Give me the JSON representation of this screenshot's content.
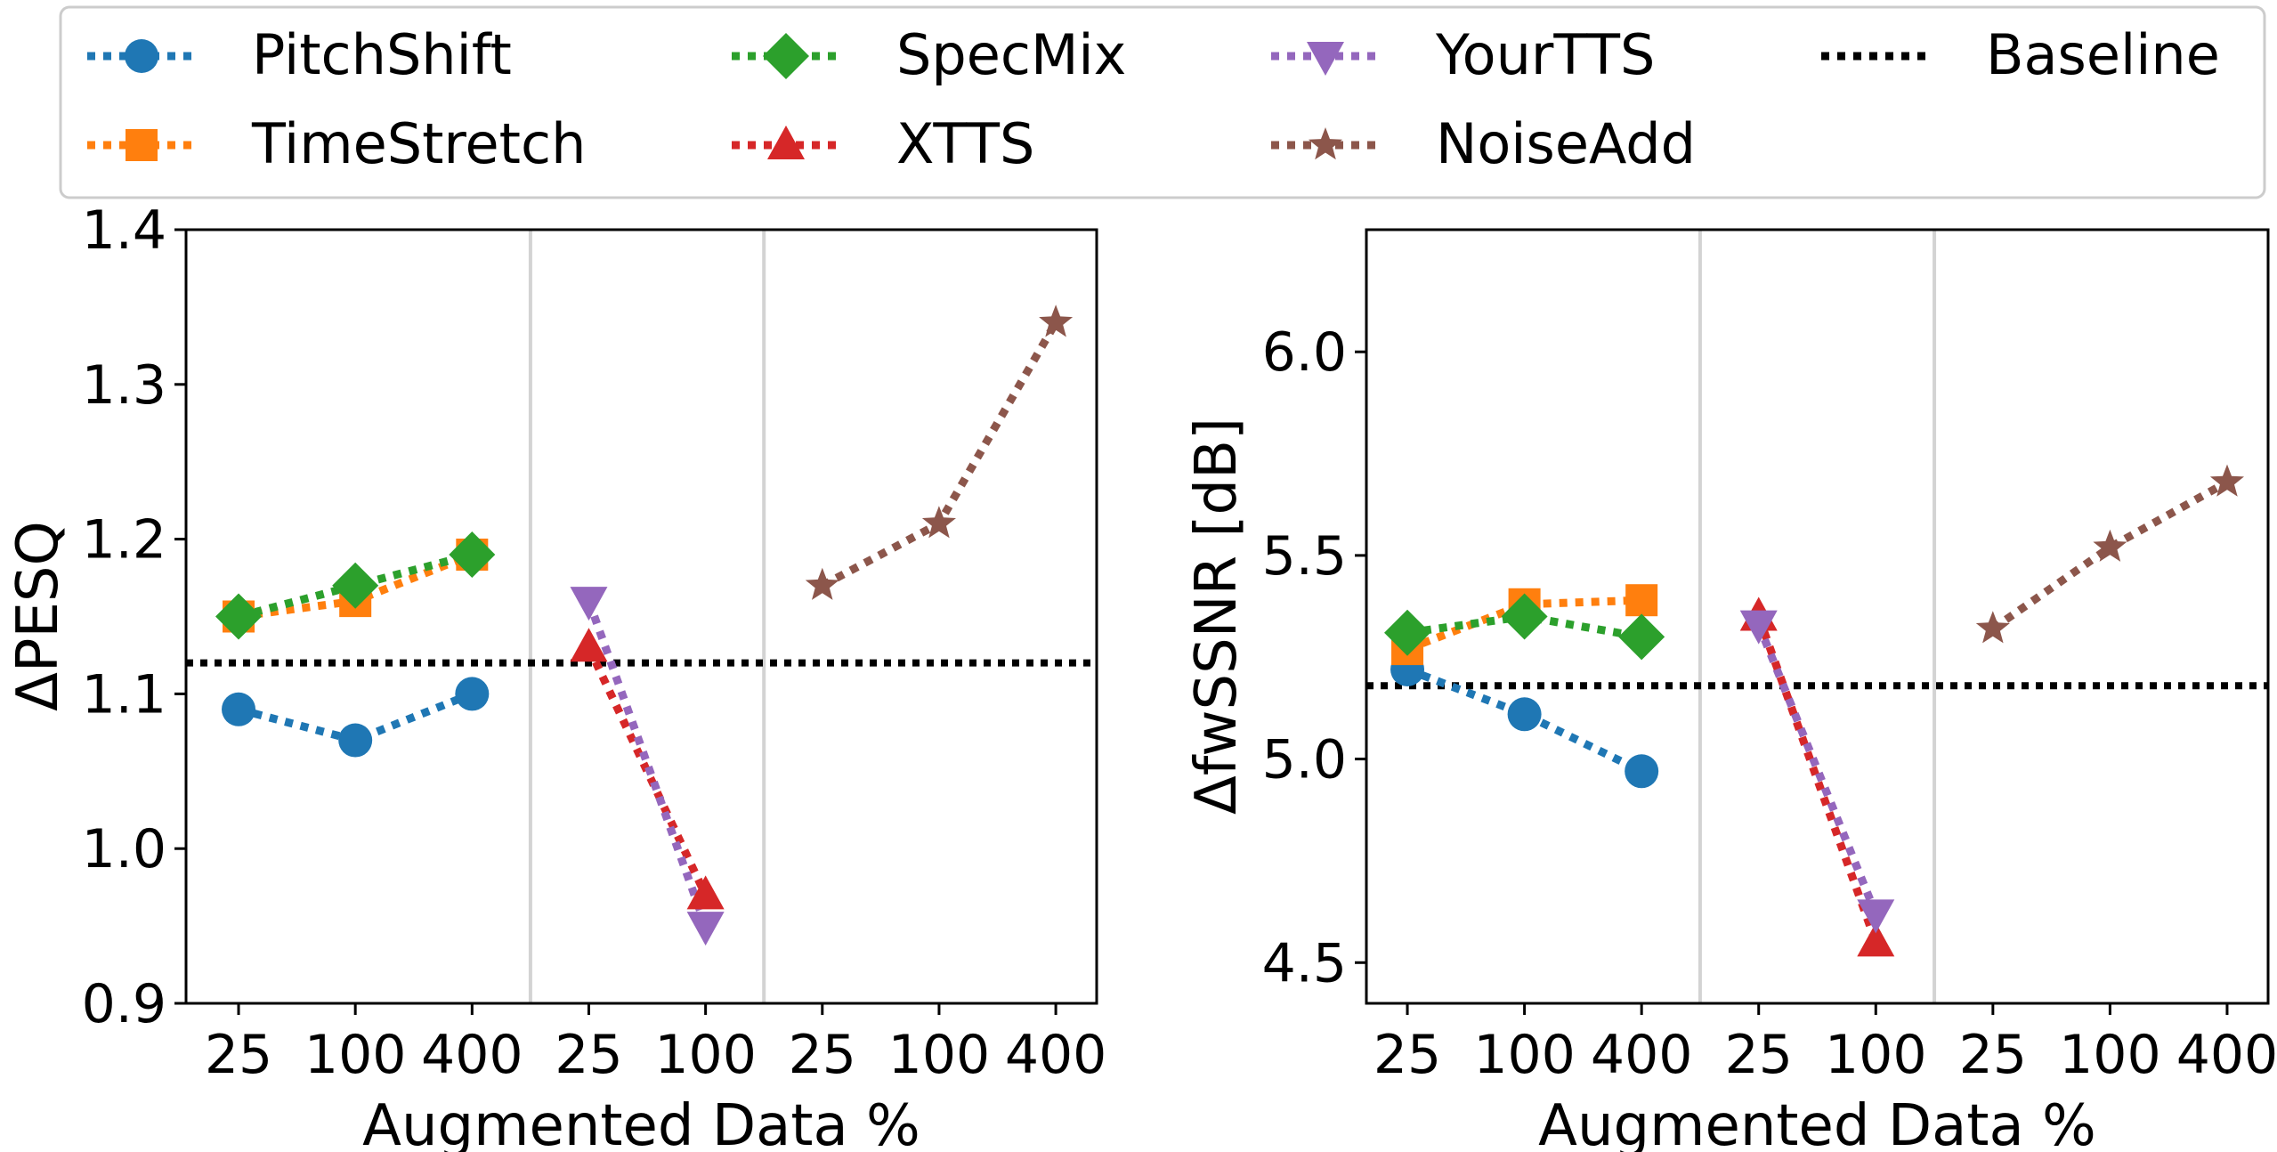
{
  "legend": {
    "entries": [
      {
        "name": "PitchShift",
        "color": "#1f77b4",
        "marker": "circle"
      },
      {
        "name": "TimeStretch",
        "color": "#ff7f0e",
        "marker": "square"
      },
      {
        "name": "SpecMix",
        "color": "#2ca02c",
        "marker": "diamond"
      },
      {
        "name": "XTTS",
        "color": "#d62728",
        "marker": "triangle-up"
      },
      {
        "name": "YourTTS",
        "color": "#9467bd",
        "marker": "triangle-down"
      },
      {
        "name": "NoiseAdd",
        "color": "#8c564b",
        "marker": "star"
      },
      {
        "name": "Baseline",
        "color": "#000000",
        "marker": "none"
      }
    ],
    "placement": "top-center, 4 columns"
  },
  "chart_data": [
    {
      "type": "line",
      "xlabel": "Augmented Data %",
      "ylabel": "ΔPESQ",
      "x_positions": [
        0,
        1,
        2,
        3,
        4,
        5,
        6,
        7
      ],
      "x_tick_labels": [
        "25",
        "100",
        "400",
        "25",
        "100",
        "25",
        "100",
        "400"
      ],
      "group_separators": [
        2.5,
        4.5
      ],
      "xlim": [
        -0.45,
        7.35
      ],
      "ylim": [
        0.9,
        1.4
      ],
      "y_ticks": [
        0.9,
        1.0,
        1.1,
        1.2,
        1.3,
        1.4
      ],
      "y_tick_labels": [
        "0.9",
        "1.0",
        "1.1",
        "1.2",
        "1.3",
        "1.4"
      ],
      "baseline": 1.12,
      "series": [
        {
          "name": "PitchShift",
          "x": [
            0,
            1,
            2
          ],
          "values": [
            1.09,
            1.07,
            1.1
          ]
        },
        {
          "name": "TimeStretch",
          "x": [
            0,
            1,
            2
          ],
          "values": [
            1.15,
            1.16,
            1.19
          ]
        },
        {
          "name": "SpecMix",
          "x": [
            0,
            1,
            2
          ],
          "values": [
            1.15,
            1.17,
            1.19
          ]
        },
        {
          "name": "XTTS",
          "x": [
            3,
            4
          ],
          "values": [
            1.13,
            0.97
          ]
        },
        {
          "name": "YourTTS",
          "x": [
            3,
            4
          ],
          "values": [
            1.16,
            0.95
          ]
        },
        {
          "name": "NoiseAdd",
          "x": [
            5,
            6,
            7
          ],
          "values": [
            1.17,
            1.21,
            1.34
          ]
        }
      ]
    },
    {
      "type": "line",
      "xlabel": "Augmented Data %",
      "ylabel": "ΔfwSSNR [dB]",
      "x_positions": [
        0,
        1,
        2,
        3,
        4,
        5,
        6,
        7
      ],
      "x_tick_labels": [
        "25",
        "100",
        "400",
        "25",
        "100",
        "25",
        "100",
        "400"
      ],
      "group_separators": [
        2.5,
        4.5
      ],
      "xlim": [
        -0.35,
        7.35
      ],
      "ylim": [
        4.4,
        6.3
      ],
      "y_ticks": [
        4.5,
        5.0,
        5.5,
        6.0
      ],
      "y_tick_labels": [
        "4.5",
        "5.0",
        "5.5",
        "6.0"
      ],
      "baseline": 5.18,
      "series": [
        {
          "name": "PitchShift",
          "x": [
            0,
            1,
            2
          ],
          "values": [
            5.22,
            5.11,
            4.97
          ]
        },
        {
          "name": "TimeStretch",
          "x": [
            0,
            1,
            2
          ],
          "values": [
            5.27,
            5.38,
            5.39
          ]
        },
        {
          "name": "SpecMix",
          "x": [
            0,
            1,
            2
          ],
          "values": [
            5.31,
            5.35,
            5.3
          ]
        },
        {
          "name": "XTTS",
          "x": [
            3,
            4
          ],
          "values": [
            5.35,
            4.55
          ]
        },
        {
          "name": "YourTTS",
          "x": [
            3,
            4
          ],
          "values": [
            5.33,
            4.62
          ]
        },
        {
          "name": "NoiseAdd",
          "x": [
            5,
            6,
            7
          ],
          "values": [
            5.32,
            5.52,
            5.68
          ]
        }
      ]
    }
  ]
}
